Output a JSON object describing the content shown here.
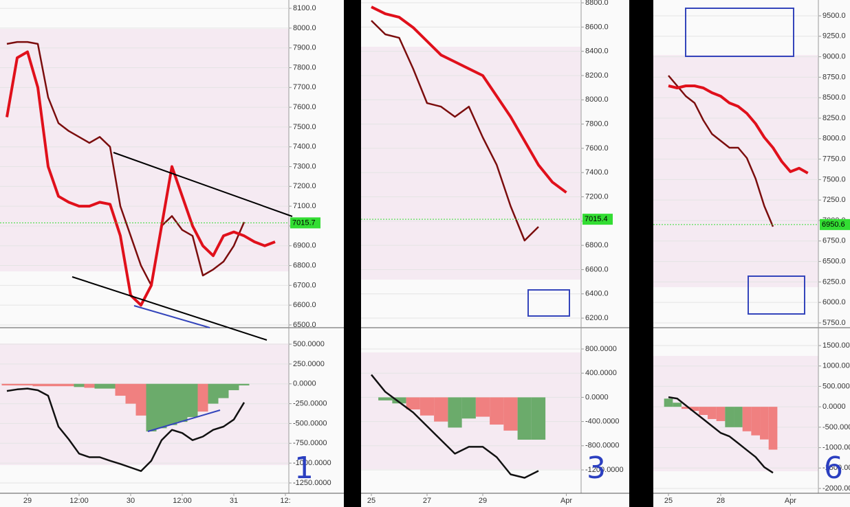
{
  "chart_data": [
    {
      "type": "line",
      "categories": [
        null,
        null,
        "29",
        null,
        null,
        null,
        null,
        "12:00",
        null,
        null,
        null,
        null,
        "30",
        null,
        null,
        null,
        null,
        "12:00",
        null,
        null,
        null,
        null,
        "31",
        null,
        null,
        null,
        null,
        "12:"
      ],
      "series": [
        {
          "color": "#7b0d0d",
          "values": [
            7920,
            7930,
            7930,
            7920,
            7650,
            7520,
            7480,
            7450,
            7420,
            7450,
            7400,
            7100,
            6950,
            6800,
            6700,
            7000,
            7050,
            6980,
            6950,
            6750,
            6780,
            6820,
            6900,
            7020,
            null,
            null,
            null,
            null
          ]
        },
        {
          "color": "#e0101b",
          "values": [
            7550,
            7850,
            7880,
            7700,
            7300,
            7150,
            7120,
            7100,
            7100,
            7120,
            7110,
            6950,
            6650,
            6600,
            6700,
            7000,
            7300,
            7150,
            7000,
            6900,
            6850,
            6950,
            6970,
            6950,
            6920,
            6900,
            6920,
            null
          ]
        }
      ],
      "ylim": [
        6486,
        8142
      ],
      "yticks": [
        {
          "value": 6500,
          "label": "6500.0"
        },
        {
          "value": 6600,
          "label": "6600.0"
        },
        {
          "value": 6700,
          "label": "6700.0"
        },
        {
          "value": 6800,
          "label": "6800.0"
        },
        {
          "value": 6900,
          "label": "6900.0"
        },
        {
          "value": 7000,
          "label": "7000.0"
        },
        {
          "value": 7100,
          "label": "7100.0"
        },
        {
          "value": 7200,
          "label": "7200.0"
        },
        {
          "value": 7300,
          "label": "7300.0"
        },
        {
          "value": 7400,
          "label": "7400.0"
        },
        {
          "value": 7500,
          "label": "7500.0"
        },
        {
          "value": 7600,
          "label": "7600.0"
        },
        {
          "value": 7700,
          "label": "7700.0"
        },
        {
          "value": 7800,
          "label": "7800.0"
        },
        {
          "value": 7900,
          "label": "7900.0"
        },
        {
          "value": 8000,
          "label": "8000.0"
        },
        {
          "value": 8100,
          "label": "8100.0"
        }
      ],
      "current_price": 7015.7,
      "current_price_color": "#33dd33",
      "oscillator": {
        "type": "bar",
        "values": [
          -20,
          -20,
          -20,
          -30,
          -30,
          -30,
          -30,
          -40,
          -50,
          -60,
          -60,
          -150,
          -250,
          -400,
          -600,
          -560,
          -520,
          -480,
          -420,
          -350,
          -250,
          -180,
          -80,
          -20,
          null,
          null,
          null,
          null
        ],
        "colors": [
          "#f08080",
          "#f08080",
          "#f08080",
          "#f08080",
          "#f08080",
          "#f08080",
          "#f08080",
          "#6bab6b",
          "#f08080",
          "#6bab6b",
          "#6bab6b",
          "#f08080",
          "#f08080",
          "#f08080",
          "#6bab6b",
          "#6bab6b",
          "#6bab6b",
          "#6bab6b",
          "#6bab6b",
          "#f08080",
          "#6bab6b",
          "#6bab6b",
          "#6bab6b",
          "#6bab6b",
          null,
          null,
          null,
          null
        ],
        "series": [
          {
            "color": "#111111",
            "values": [
              -90,
              -70,
              -60,
              -80,
              -150,
              -540,
              -700,
              -880,
              -925,
              -925,
              -970,
              -1010,
              -1055,
              -1100,
              -970,
              -710,
              -580,
              -620,
              -710,
              -665,
              -580,
              -540,
              -450,
              -235,
              null,
              null,
              null,
              null
            ]
          }
        ],
        "ylim": [
          -1380,
          682
        ],
        "yticks": [
          {
            "value": 500,
            "label": "500.0000"
          },
          {
            "value": 250,
            "label": "250.0000"
          },
          {
            "value": 0,
            "label": "0.0000"
          },
          {
            "value": -250,
            "label": "-250.0000"
          },
          {
            "value": -500,
            "label": "-500.0000"
          },
          {
            "value": -750,
            "label": "-750.0000"
          },
          {
            "value": -1000,
            "label": "-1000.0000"
          },
          {
            "value": -1250,
            "label": "-1250.0000"
          }
        ],
        "annotation": "1"
      }
    },
    {
      "type": "line",
      "categories": [
        "25",
        null,
        null,
        null,
        "27",
        null,
        null,
        null,
        "29",
        null,
        null,
        null,
        null,
        null,
        "Apr"
      ],
      "series": [
        {
          "color": "#7b0d0d",
          "values": [
            8653,
            8540,
            8511,
            8256,
            7973,
            7944,
            7860,
            7944,
            7690,
            7463,
            7123,
            6840,
            6953,
            null,
            null
          ]
        },
        {
          "color": "#e0101b",
          "values": [
            8766,
            8709,
            8681,
            8596,
            8483,
            8369,
            8313,
            8256,
            8200,
            8030,
            7860,
            7661,
            7463,
            7321,
            7236
          ]
        }
      ],
      "ylim": [
        6121,
        8823
      ],
      "yticks": [
        {
          "value": 6200,
          "label": "6200.0"
        },
        {
          "value": 6400,
          "label": "6400.0"
        },
        {
          "value": 6600,
          "label": "6600.0"
        },
        {
          "value": 6800,
          "label": "6800.0"
        },
        {
          "value": 7000,
          "label": "7000.0"
        },
        {
          "value": 7200,
          "label": "7200.0"
        },
        {
          "value": 7400,
          "label": "7400.0"
        },
        {
          "value": 7600,
          "label": "7600.0"
        },
        {
          "value": 7800,
          "label": "7800.0"
        },
        {
          "value": 8000,
          "label": "8000.0"
        },
        {
          "value": 8200,
          "label": "8200.0"
        },
        {
          "value": 8400,
          "label": "8400.0"
        },
        {
          "value": 8600,
          "label": "8600.0"
        },
        {
          "value": 8800,
          "label": "8800.0"
        }
      ],
      "current_price": 7015.4,
      "current_price_color": "#33dd33",
      "oscillator": {
        "type": "bar",
        "values": [
          0,
          -50,
          -100,
          -200,
          -300,
          -400,
          -500,
          -350,
          -320,
          -450,
          -550,
          -700,
          -700,
          null,
          null
        ],
        "colors": [
          "#6bab6b",
          "#6bab6b",
          "#6bab6b",
          "#f08080",
          "#f08080",
          "#f08080",
          "#6bab6b",
          "#6bab6b",
          "#f08080",
          "#f08080",
          "#f08080",
          "#6bab6b",
          "#6bab6b",
          null,
          null
        ],
        "series": [
          {
            "color": "#111111",
            "values": [
              375,
              91,
              -80,
              -250,
              -477,
              -705,
              -932,
              -818,
              -818,
              -989,
              -1273,
              -1330,
              -1216,
              null,
              null
            ]
          }
        ],
        "ylim": [
          -1586,
          1118
        ],
        "yticks": [
          {
            "value": 800,
            "label": "800.0000"
          },
          {
            "value": 400,
            "label": "400.0000"
          },
          {
            "value": 0,
            "label": "0.0000"
          },
          {
            "value": -400,
            "label": "-400.0000"
          },
          {
            "value": -800,
            "label": "-800.0000"
          },
          {
            "value": -1200,
            "label": "-1200.0000"
          }
        ],
        "annotation": "3"
      }
    },
    {
      "type": "line",
      "categories": [
        "25",
        null,
        null,
        null,
        null,
        null,
        "28",
        null,
        null,
        null,
        null,
        null,
        null,
        null,
        "Apr",
        null,
        null
      ],
      "series": [
        {
          "color": "#7b0d0d",
          "values": [
            8770,
            8644,
            8518,
            8435,
            8225,
            8057,
            7973,
            7889,
            7889,
            7763,
            7512,
            7176,
            6925,
            null,
            null,
            null,
            null
          ]
        },
        {
          "color": "#e0101b",
          "values": [
            8644,
            8619,
            8644,
            8644,
            8619,
            8560,
            8518,
            8435,
            8393,
            8309,
            8183,
            8015,
            7889,
            7721,
            7596,
            7638,
            7579
          ]
        }
      ],
      "ylim": [
        5691,
        9693
      ],
      "yticks": [
        {
          "value": 5750,
          "label": "5750.0"
        },
        {
          "value": 6000,
          "label": "6000.0"
        },
        {
          "value": 6250,
          "label": "6250.0"
        },
        {
          "value": 6500,
          "label": "6500.0"
        },
        {
          "value": 6750,
          "label": "6750.0"
        },
        {
          "value": 7000,
          "label": "7000.0"
        },
        {
          "value": 7250,
          "label": "7250.0"
        },
        {
          "value": 7500,
          "label": "7500.0"
        },
        {
          "value": 7750,
          "label": "7750.0"
        },
        {
          "value": 8000,
          "label": "8000.0"
        },
        {
          "value": 8250,
          "label": "8250.0"
        },
        {
          "value": 8500,
          "label": "8500.0"
        },
        {
          "value": 8750,
          "label": "8750.0"
        },
        {
          "value": 9000,
          "label": "9000.0"
        },
        {
          "value": 9250,
          "label": "9250.0"
        },
        {
          "value": 9500,
          "label": "9500.0"
        }
      ],
      "current_price": 6950.6,
      "current_price_color": "#33dd33",
      "oscillator": {
        "type": "bar",
        "values": [
          200,
          100,
          -50,
          -100,
          -200,
          -300,
          -350,
          -500,
          -500,
          -600,
          -700,
          -800,
          -1050,
          null,
          null,
          null,
          null
        ],
        "colors": [
          "#6bab6b",
          "#6bab6b",
          "#f08080",
          "#f08080",
          "#f08080",
          "#f08080",
          "#f08080",
          "#6bab6b",
          "#6bab6b",
          "#f08080",
          "#f08080",
          "#f08080",
          "#f08080",
          null,
          null,
          null,
          null
        ],
        "series": [
          {
            "color": "#111111",
            "values": [
              236,
              202,
              34,
              -135,
              -303,
              -471,
              -640,
              -724,
              -892,
              -1061,
              -1229,
              -1481,
              -1616,
              null,
              null,
              null,
              null
            ]
          }
        ],
        "ylim": [
          -2118,
          1887
        ],
        "yticks": [
          {
            "value": 1500,
            "label": "1500.0000"
          },
          {
            "value": 1000,
            "label": "1000.0000"
          },
          {
            "value": 500,
            "label": "500.0000"
          },
          {
            "value": 0,
            "label": "0.0000"
          },
          {
            "value": -500,
            "label": "-500.0000"
          },
          {
            "value": -1000,
            "label": "-1000.0000"
          },
          {
            "value": -1500,
            "label": "-1500.0000"
          },
          {
            "value": -2000,
            "label": "-2000.0000"
          }
        ],
        "annotation": "6"
      }
    }
  ]
}
